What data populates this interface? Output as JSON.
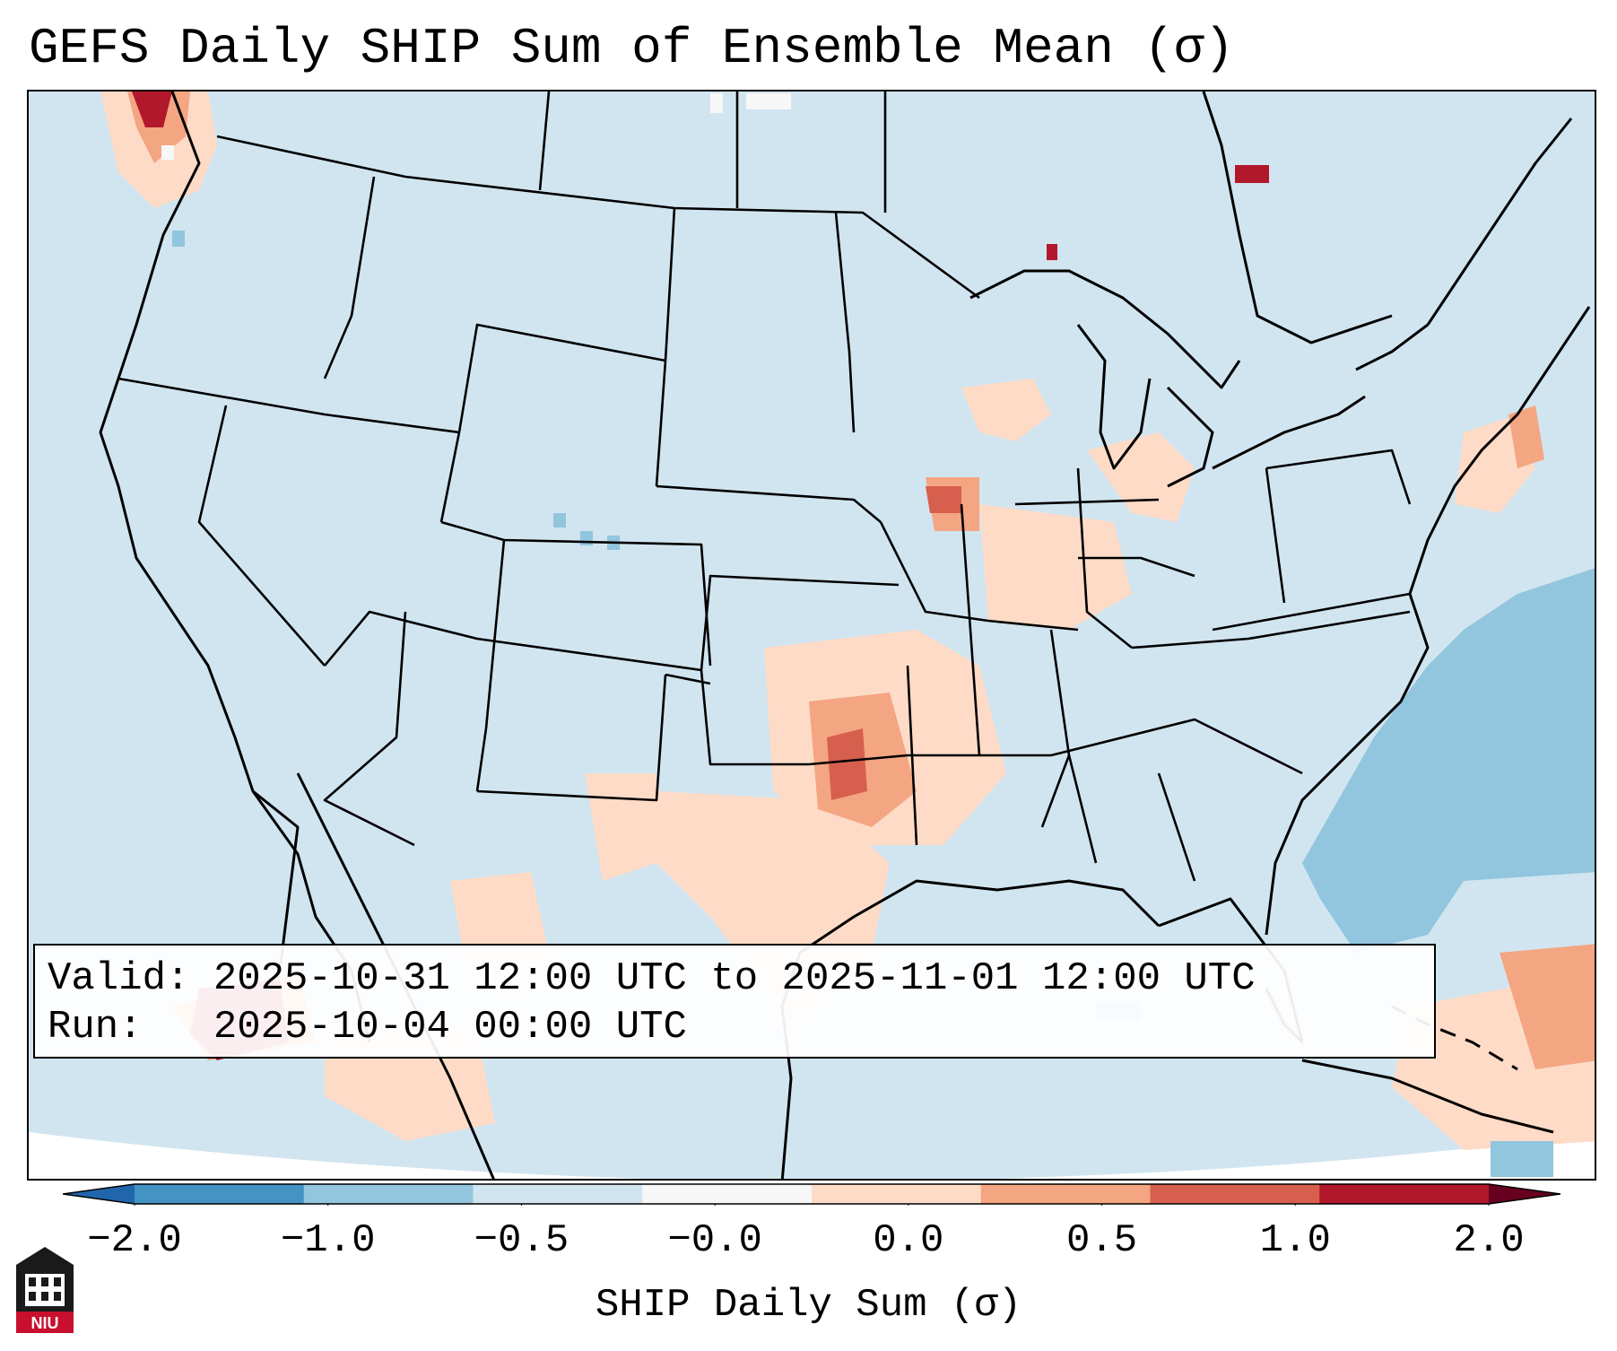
{
  "title": "GEFS Daily SHIP Sum of Ensemble Mean (σ)",
  "info": {
    "valid_line": "Valid: 2025-10-31 12:00 UTC to 2025-11-01 12:00 UTC",
    "run_line": "Run:   2025-10-04 00:00 UTC"
  },
  "colorbar": {
    "label": "SHIP Daily Sum (σ)",
    "tick_labels": [
      "−2.0",
      "−1.0",
      "−0.5",
      "−0.0",
      "0.0",
      "0.5",
      "1.0",
      "2.0"
    ],
    "colors": [
      "#4393c3",
      "#92c5de",
      "#d1e5f0",
      "#f7f7f7",
      "#fddbc7",
      "#f4a582",
      "#d6604d",
      "#b2182b"
    ]
  },
  "logo": {
    "text": "NIU"
  }
}
